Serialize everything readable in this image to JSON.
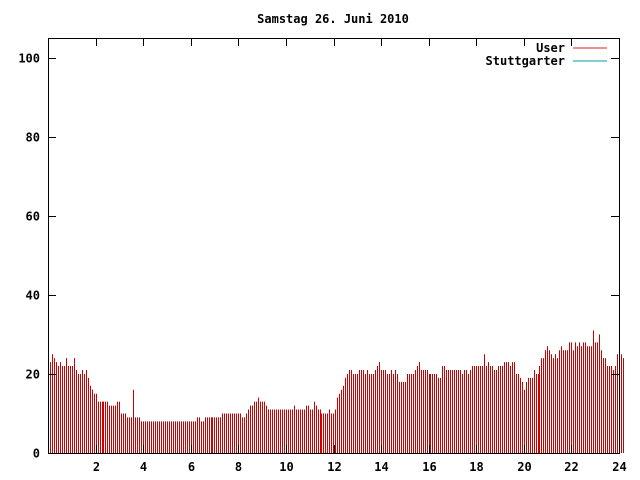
{
  "chart_data": {
    "type": "bar",
    "title": "Samstag 26. Juni 2010",
    "xlabel": "",
    "ylabel": "",
    "xlim": [
      0,
      24
    ],
    "ylim": [
      0,
      105
    ],
    "x_ticks": [
      2,
      4,
      6,
      8,
      10,
      12,
      14,
      16,
      18,
      20,
      22,
      24
    ],
    "y_ticks": [
      0,
      20,
      40,
      60,
      80,
      100
    ],
    "grid": false,
    "legend_position": "top-right",
    "legend": [
      {
        "name": "User",
        "color": "#e41a1c"
      },
      {
        "name": "Stuttgarter",
        "color": "#00a0a0"
      }
    ],
    "series": [
      {
        "name": "User",
        "color": "#cc0000",
        "interval_hours": 0.0833,
        "values": [
          24,
          23,
          25,
          24,
          23,
          22,
          23,
          22,
          22,
          24,
          22,
          22,
          22,
          24,
          21,
          20,
          20,
          21,
          20,
          21,
          19,
          17,
          16,
          15,
          15,
          13,
          13,
          13,
          13,
          13,
          13,
          12,
          12,
          12,
          12,
          13,
          13,
          10,
          10,
          10,
          9,
          9,
          9,
          16,
          9,
          9,
          9,
          8,
          8,
          8,
          8,
          8,
          8,
          8,
          8,
          8,
          8,
          8,
          8,
          8,
          8,
          8,
          8,
          8,
          8,
          8,
          8,
          8,
          8,
          8,
          8,
          8,
          8,
          8,
          8,
          9,
          9,
          8,
          8,
          9,
          9,
          9,
          9,
          9,
          9,
          9,
          9,
          9,
          10,
          10,
          10,
          10,
          10,
          10,
          10,
          10,
          10,
          10,
          9,
          9,
          10,
          11,
          12,
          12,
          13,
          13,
          14,
          13,
          13,
          13,
          12,
          11,
          11,
          11,
          11,
          11,
          11,
          11,
          11,
          11,
          11,
          11,
          11,
          11,
          12,
          11,
          11,
          11,
          11,
          11,
          12,
          12,
          11,
          11,
          13,
          12,
          11,
          11,
          10,
          10,
          10,
          10,
          11,
          10,
          10,
          11,
          14,
          15,
          16,
          17,
          19,
          20,
          21,
          21,
          20,
          20,
          20,
          21,
          21,
          21,
          20,
          21,
          20,
          20,
          20,
          21,
          22,
          23,
          21,
          21,
          21,
          20,
          20,
          21,
          20,
          21,
          20,
          18,
          18,
          18,
          18,
          20,
          20,
          20,
          20,
          21,
          22,
          23,
          21,
          21,
          21,
          21,
          20,
          20,
          20,
          20,
          20,
          19,
          19,
          22,
          22,
          21,
          21,
          21,
          21,
          21,
          21,
          21,
          21,
          20,
          21,
          21,
          20,
          21,
          22,
          22,
          22,
          22,
          22,
          22,
          25,
          22,
          23,
          22,
          22,
          21,
          21,
          22,
          22,
          22,
          23,
          23,
          23,
          22,
          23,
          23,
          20,
          20,
          19,
          18,
          16,
          18,
          19,
          19,
          19,
          21,
          20,
          20,
          22,
          24,
          24,
          26,
          27,
          26,
          25,
          24,
          25,
          24,
          26,
          27,
          26,
          26,
          26,
          28,
          28,
          26,
          28,
          27,
          28,
          27,
          28,
          28,
          27,
          27,
          27,
          31,
          28,
          28,
          30,
          26,
          24,
          24,
          22,
          22,
          22,
          21,
          22,
          25,
          25,
          25,
          24
        ]
      },
      {
        "name": "Stuttgarter",
        "color": "#00a0a0",
        "values": []
      }
    ]
  }
}
